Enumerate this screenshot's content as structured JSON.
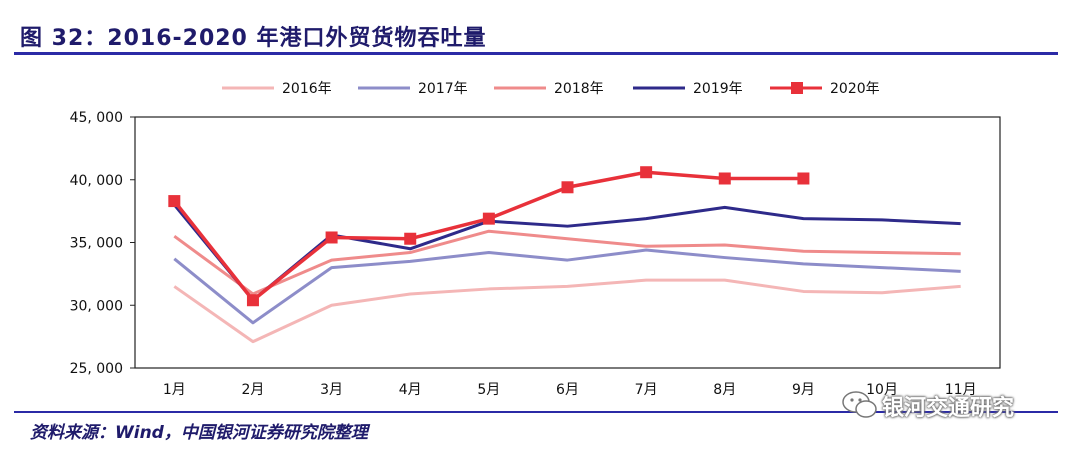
{
  "header": {
    "title": "图 32：2016-2020 年港口外贸货物吞吐量"
  },
  "footer": {
    "source": "资料来源：Wind，中国银河证券研究院整理"
  },
  "watermark": {
    "text": "银河交通研究",
    "icon": "wechat-icon"
  },
  "chart_data": {
    "type": "line",
    "title": "",
    "xlabel": "",
    "ylabel": "",
    "categories": [
      "1月",
      "2月",
      "3月",
      "4月",
      "5月",
      "6月",
      "7月",
      "8月",
      "9月",
      "10月",
      "11月"
    ],
    "ylim": [
      25000,
      45000
    ],
    "yticks": [
      25000,
      30000,
      35000,
      40000,
      45000
    ],
    "ytick_labels": [
      "25, 000",
      "30, 000",
      "35, 000",
      "40, 000",
      "45, 000"
    ],
    "legend_position": "top",
    "grid": false,
    "series": [
      {
        "name": "2016年",
        "color": "#f4b6b6",
        "marker": "none",
        "values": [
          31500,
          27100,
          30000,
          30900,
          31300,
          31500,
          32000,
          32000,
          31100,
          31000,
          31500
        ]
      },
      {
        "name": "2017年",
        "color": "#8d8dc9",
        "marker": "none",
        "values": [
          33700,
          28600,
          33000,
          33500,
          34200,
          33600,
          34400,
          33800,
          33300,
          33000,
          32700
        ]
      },
      {
        "name": "2018年",
        "color": "#ef8b8b",
        "marker": "none",
        "values": [
          35500,
          30900,
          33600,
          34200,
          35900,
          35300,
          34700,
          34800,
          34300,
          34200,
          34100
        ]
      },
      {
        "name": "2019年",
        "color": "#2e2a8a",
        "marker": "none",
        "values": [
          38000,
          30400,
          35600,
          34500,
          36700,
          36300,
          36900,
          37800,
          36900,
          36800,
          36500
        ]
      },
      {
        "name": "2020年",
        "color": "#e8313a",
        "marker": "square",
        "values": [
          38300,
          30400,
          35400,
          35300,
          36900,
          39400,
          40600,
          40100,
          40100,
          null,
          null
        ]
      }
    ]
  }
}
